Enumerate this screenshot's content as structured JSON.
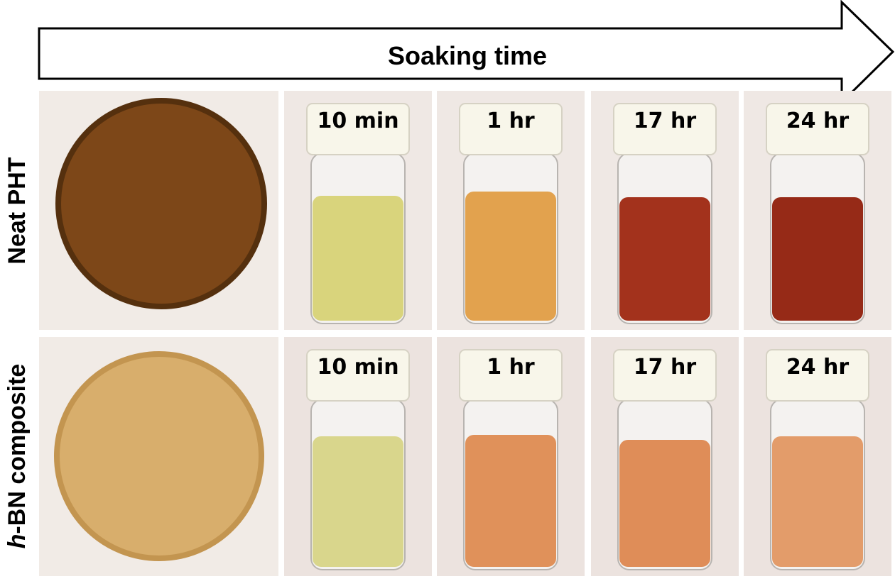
{
  "header": {
    "title": "Soaking time"
  },
  "rows": [
    {
      "label": "Neat PHT",
      "times": [
        "10 min",
        "1 hr",
        "17 hr",
        "24 hr"
      ]
    },
    {
      "label_prefix": "h",
      "label": "-BN composite",
      "times": [
        "10 min",
        "1 hr",
        "17 hr",
        "24 hr"
      ]
    }
  ]
}
